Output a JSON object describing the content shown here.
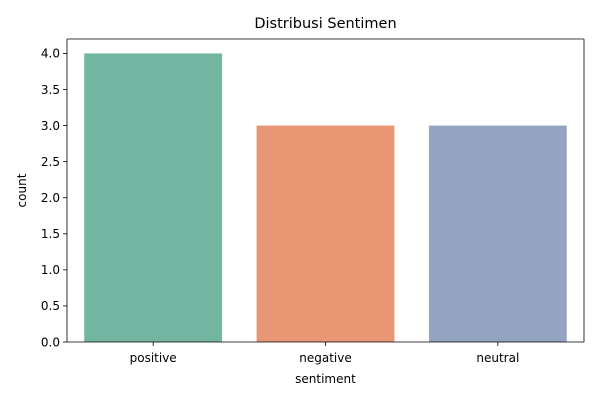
{
  "chart_data": {
    "type": "bar",
    "title": "Distribusi Sentimen",
    "xlabel": "sentiment",
    "ylabel": "count",
    "categories": [
      "positive",
      "negative",
      "neutral"
    ],
    "values": [
      4,
      3,
      3
    ],
    "colors": [
      "#72b6a1",
      "#e99675",
      "#95a3c3"
    ],
    "ylim": [
      0,
      4.2
    ],
    "yticks": [
      "0.0",
      "0.5",
      "1.0",
      "1.5",
      "2.0",
      "2.5",
      "3.0",
      "3.5",
      "4.0"
    ],
    "grid": false,
    "legend": "none"
  }
}
